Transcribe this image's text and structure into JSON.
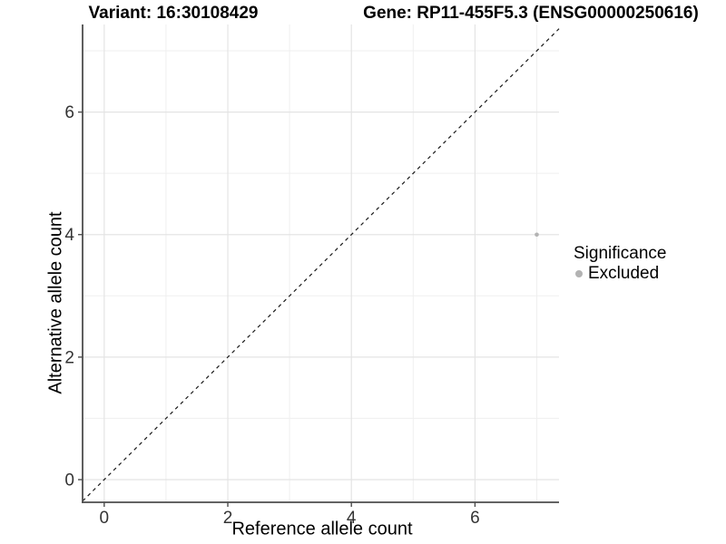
{
  "chart_data": {
    "type": "scatter",
    "title_left": "Variant: 16:30108429",
    "title_right": "Gene: RP11-455F5.3 (ENSG00000250616)",
    "xlabel": "Reference allele count",
    "ylabel": "Alternative allele count",
    "xlim": [
      -0.35,
      7.36
    ],
    "ylim": [
      -0.37,
      7.43
    ],
    "xticks": [
      0,
      2,
      4,
      6
    ],
    "yticks": [
      0,
      2,
      4,
      6
    ],
    "xticks_minor": [
      1,
      3,
      5,
      7
    ],
    "yticks_minor": [
      1,
      3,
      5,
      7
    ],
    "grid": "major and minor, light gray on white",
    "reference_line": {
      "kind": "identity y=x",
      "style": "dashed",
      "color": "#1a1a1a"
    },
    "series": [
      {
        "name": "Excluded",
        "color": "#b3b3b3",
        "points": [
          {
            "x": 7,
            "y": 4
          }
        ]
      }
    ],
    "legend": {
      "title": "Significance",
      "position": "right",
      "entries": [
        {
          "label": "Excluded",
          "color": "#b3b3b3",
          "marker": "circle"
        }
      ]
    },
    "style": {
      "background": "#ffffff",
      "grid_major_color": "#e4e4e4",
      "grid_minor_color": "#efefef",
      "axis_line_color": "#4d4d4d",
      "tick_label_color": "#333333",
      "point_radius_px": 2.3,
      "legend_key_radius_px": 4
    }
  }
}
